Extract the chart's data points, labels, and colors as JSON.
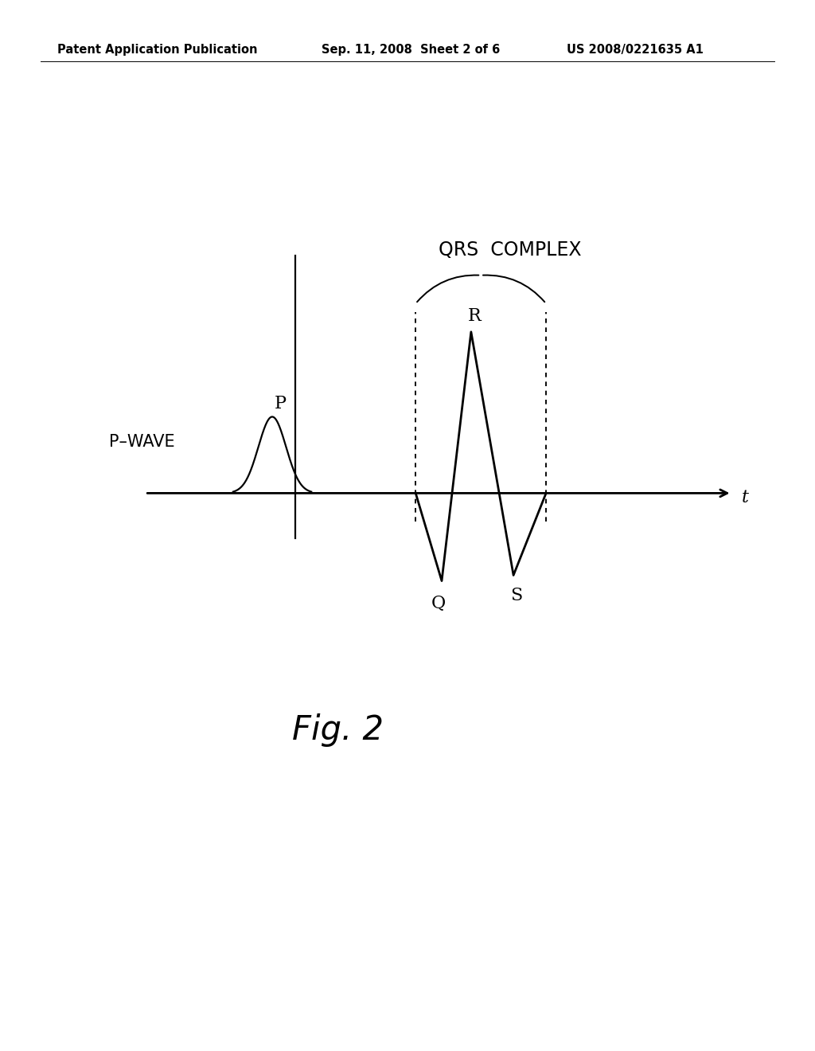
{
  "background_color": "#ffffff",
  "line_color": "#000000",
  "header_left": "Patent Application Publication",
  "header_mid": "Sep. 11, 2008  Sheet 2 of 6",
  "header_right": "US 2008/0221635 A1",
  "header_fontsize": 10.5,
  "fig_label": "Fig. 2",
  "fig_label_fontsize": 30,
  "p_wave_label": "P",
  "p_wave_side_label": "P–WAVE",
  "qrs_label": "QRS  COMPLEX",
  "r_label": "R",
  "q_label": "Q",
  "s_label": "S",
  "t_label": "t",
  "annotation_fontsize": 15,
  "qrs_label_fontsize": 17,
  "side_label_fontsize": 15
}
